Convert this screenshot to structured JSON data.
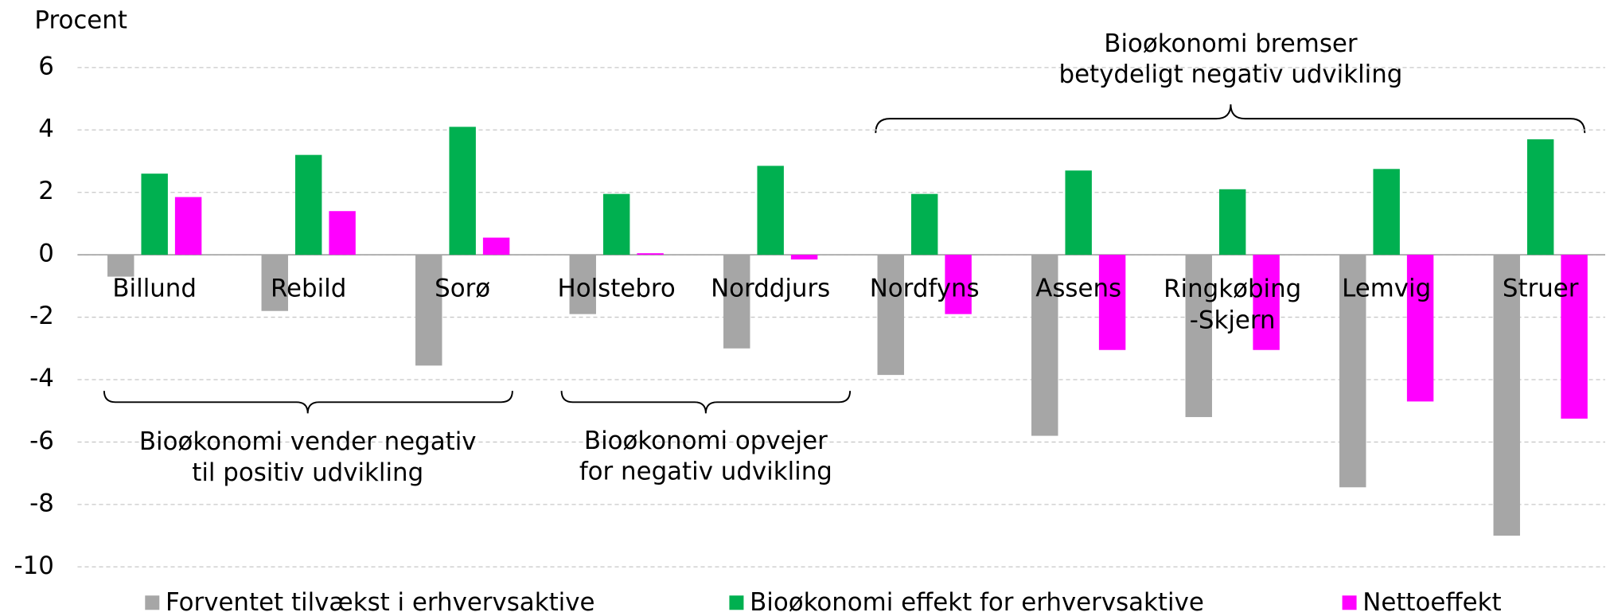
{
  "chart_data": {
    "type": "bar",
    "y_label": "Procent",
    "categories": [
      "Billund",
      "Rebild",
      "Sorø",
      "Holstebro",
      "Norddjurs",
      "Nordfyns",
      "Assens",
      "Ringkøbing\n-Skjern",
      "Lemvig",
      "Struer"
    ],
    "series": [
      {
        "name": "Forventet tilvækst i erhvervsaktive",
        "color": "#a6a6a6",
        "values": [
          -0.7,
          -1.8,
          -3.55,
          -1.9,
          -3.0,
          -3.85,
          -5.8,
          -5.2,
          -7.45,
          -9.0
        ]
      },
      {
        "name": "Bioøkonomi effekt for erhvervsaktive",
        "color": "#00b050",
        "values": [
          2.6,
          3.2,
          4.1,
          1.95,
          2.85,
          1.95,
          2.7,
          2.1,
          2.75,
          3.7
        ]
      },
      {
        "name": "Nettoeffekt",
        "color": "#ff00ff",
        "values": [
          1.85,
          1.4,
          0.55,
          0.05,
          -0.15,
          -1.9,
          -3.05,
          -3.05,
          -4.7,
          -5.25
        ]
      }
    ],
    "ylim": [
      -10,
      6
    ],
    "yticks": [
      -10,
      -8,
      -6,
      -4,
      -2,
      0,
      2,
      4,
      6
    ],
    "grid": true,
    "legend": "bottom",
    "annotations": [
      {
        "lines": [
          "Bioøkonomi bremser",
          "betydeligt negativ udvikling"
        ]
      },
      {
        "lines": [
          "Bioøkonomi vender negativ",
          "til positiv udvikling"
        ]
      },
      {
        "lines": [
          "Bioøkonomi opvejer",
          "for negativ udvikling"
        ]
      }
    ]
  }
}
